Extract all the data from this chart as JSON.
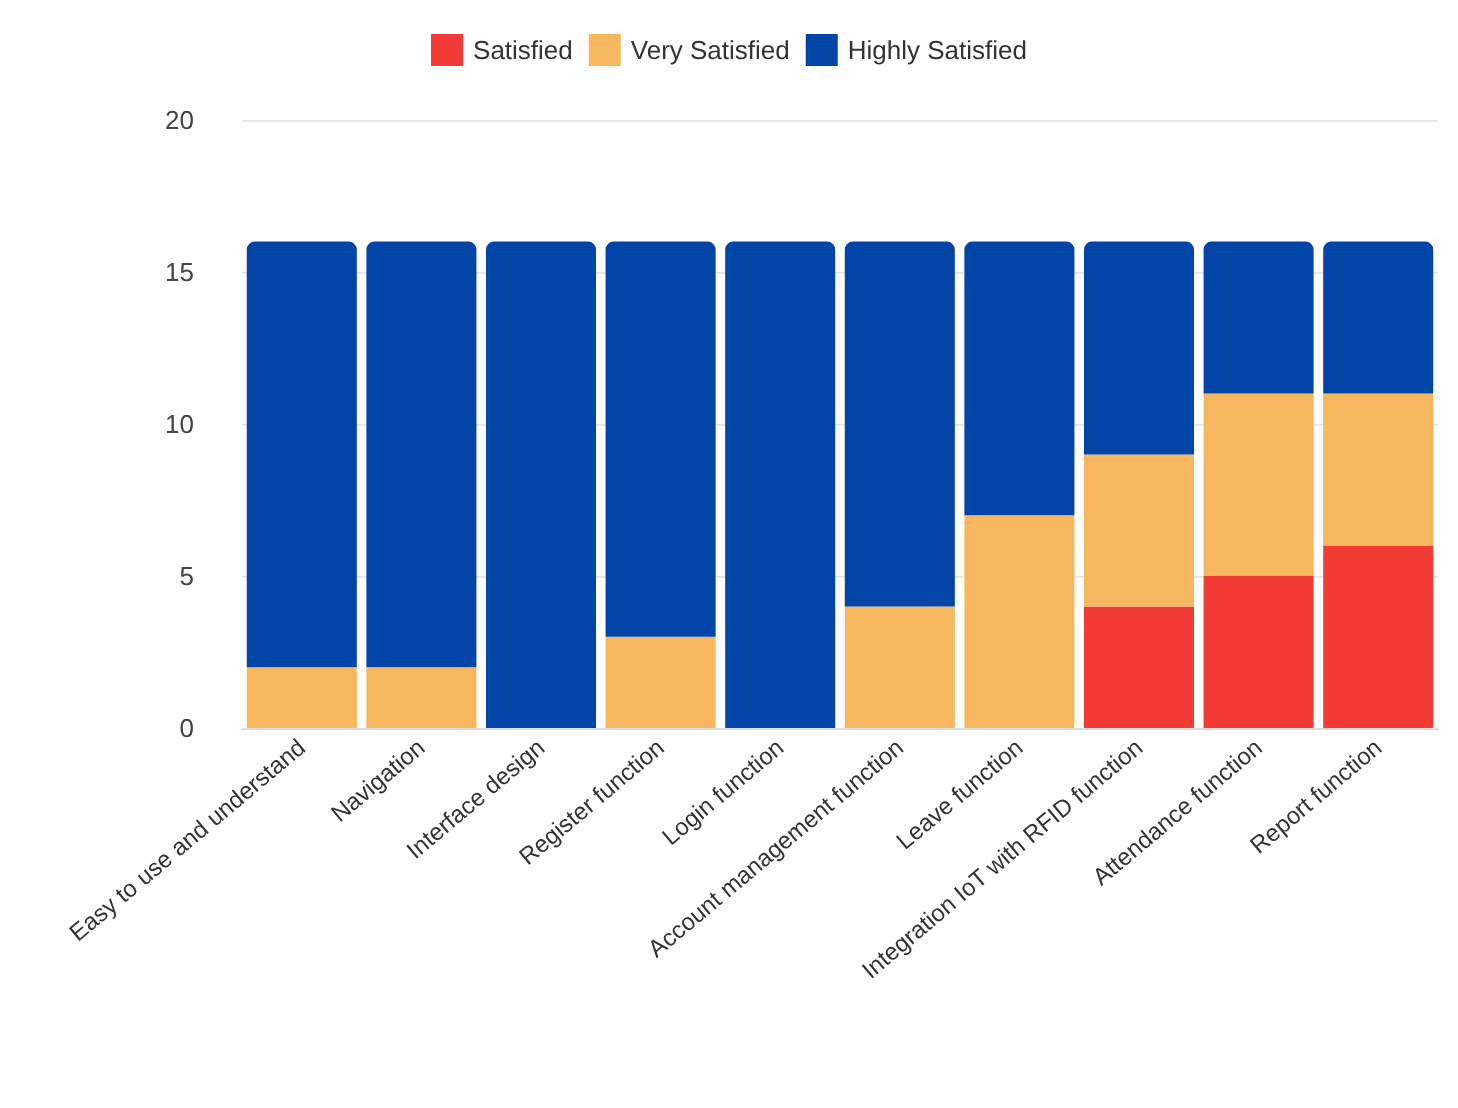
{
  "chart_data": {
    "type": "bar",
    "stacked": true,
    "categories": [
      "Easy to use and understand",
      "Navigation",
      "Interface design",
      "Register function",
      "Login function",
      "Account management function",
      "Leave function",
      "Integration IoT with RFID function",
      "Attendance function",
      "Report function"
    ],
    "series": [
      {
        "name": "Satisfied",
        "color": "#f23b35",
        "values": [
          0,
          0,
          0,
          0,
          0,
          0,
          0,
          4,
          5,
          6
        ]
      },
      {
        "name": "Very Satisfied",
        "color": "#f7b75e",
        "values": [
          2,
          2,
          0,
          3,
          0,
          4,
          7,
          5,
          6,
          5
        ]
      },
      {
        "name": "Highly Satisfied",
        "color": "#0345a6",
        "values": [
          14,
          14,
          16,
          13,
          16,
          12,
          9,
          7,
          5,
          5
        ]
      }
    ],
    "ylim": [
      0,
      20
    ],
    "yticks": [
      0,
      5,
      10,
      15,
      20
    ],
    "grid": "y",
    "legend": "top"
  }
}
